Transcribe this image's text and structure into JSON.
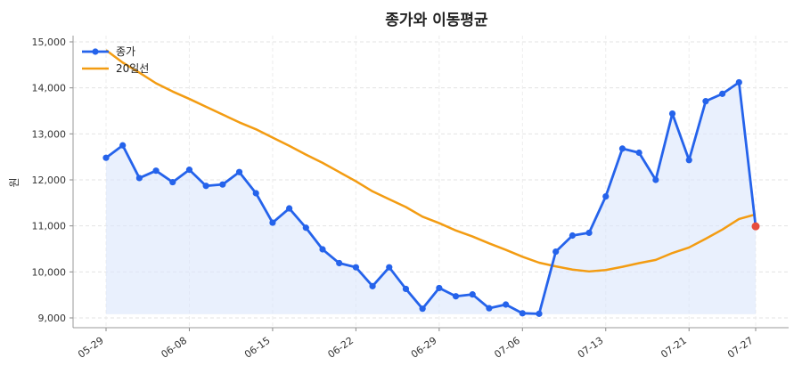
{
  "chart_data": {
    "type": "line",
    "title": "종가와 이동평균",
    "xlabel": "",
    "ylabel": "원",
    "ylim": [
      8900,
      15100
    ],
    "y_ticks": [
      "9,000",
      "10,000",
      "11,000",
      "12,000",
      "13,000",
      "14,000",
      "15,000"
    ],
    "y_tick_values": [
      9000,
      10000,
      11000,
      12000,
      13000,
      14000,
      15000
    ],
    "x_tick_labels": [
      "05-29",
      "06-08",
      "06-15",
      "06-22",
      "06-29",
      "07-06",
      "07-13",
      "07-21",
      "07-27"
    ],
    "x_tick_index": [
      0,
      5,
      10,
      15,
      20,
      25,
      30,
      35,
      39
    ],
    "grid": true,
    "legend_position": "top-left",
    "colors": {
      "close": "#2563eb",
      "ma": "#f39c12",
      "fill": "#dbe6fb",
      "last_point": "#e74c3c"
    },
    "series": [
      {
        "name": "종가",
        "values": [
          12480,
          12750,
          12040,
          12200,
          11950,
          12220,
          11870,
          11900,
          12170,
          11710,
          11070,
          11380,
          10960,
          10490,
          10190,
          10100,
          9690,
          10100,
          9630,
          9200,
          9650,
          9470,
          9510,
          9210,
          9290,
          9100,
          9090,
          10440,
          10790,
          10850,
          11640,
          12680,
          12590,
          12000,
          13440,
          12430,
          13710,
          13870,
          14120,
          10990
        ]
      },
      {
        "name": "20일선",
        "values": [
          14820,
          14550,
          14330,
          14100,
          13920,
          13760,
          13590,
          13420,
          13250,
          13100,
          12920,
          12740,
          12550,
          12370,
          12170,
          11970,
          11750,
          11580,
          11410,
          11200,
          11060,
          10900,
          10770,
          10620,
          10480,
          10330,
          10200,
          10120,
          10050,
          10010,
          10040,
          10110,
          10190,
          10260,
          10410,
          10530,
          10720,
          10920,
          11150,
          11250
        ]
      }
    ]
  }
}
